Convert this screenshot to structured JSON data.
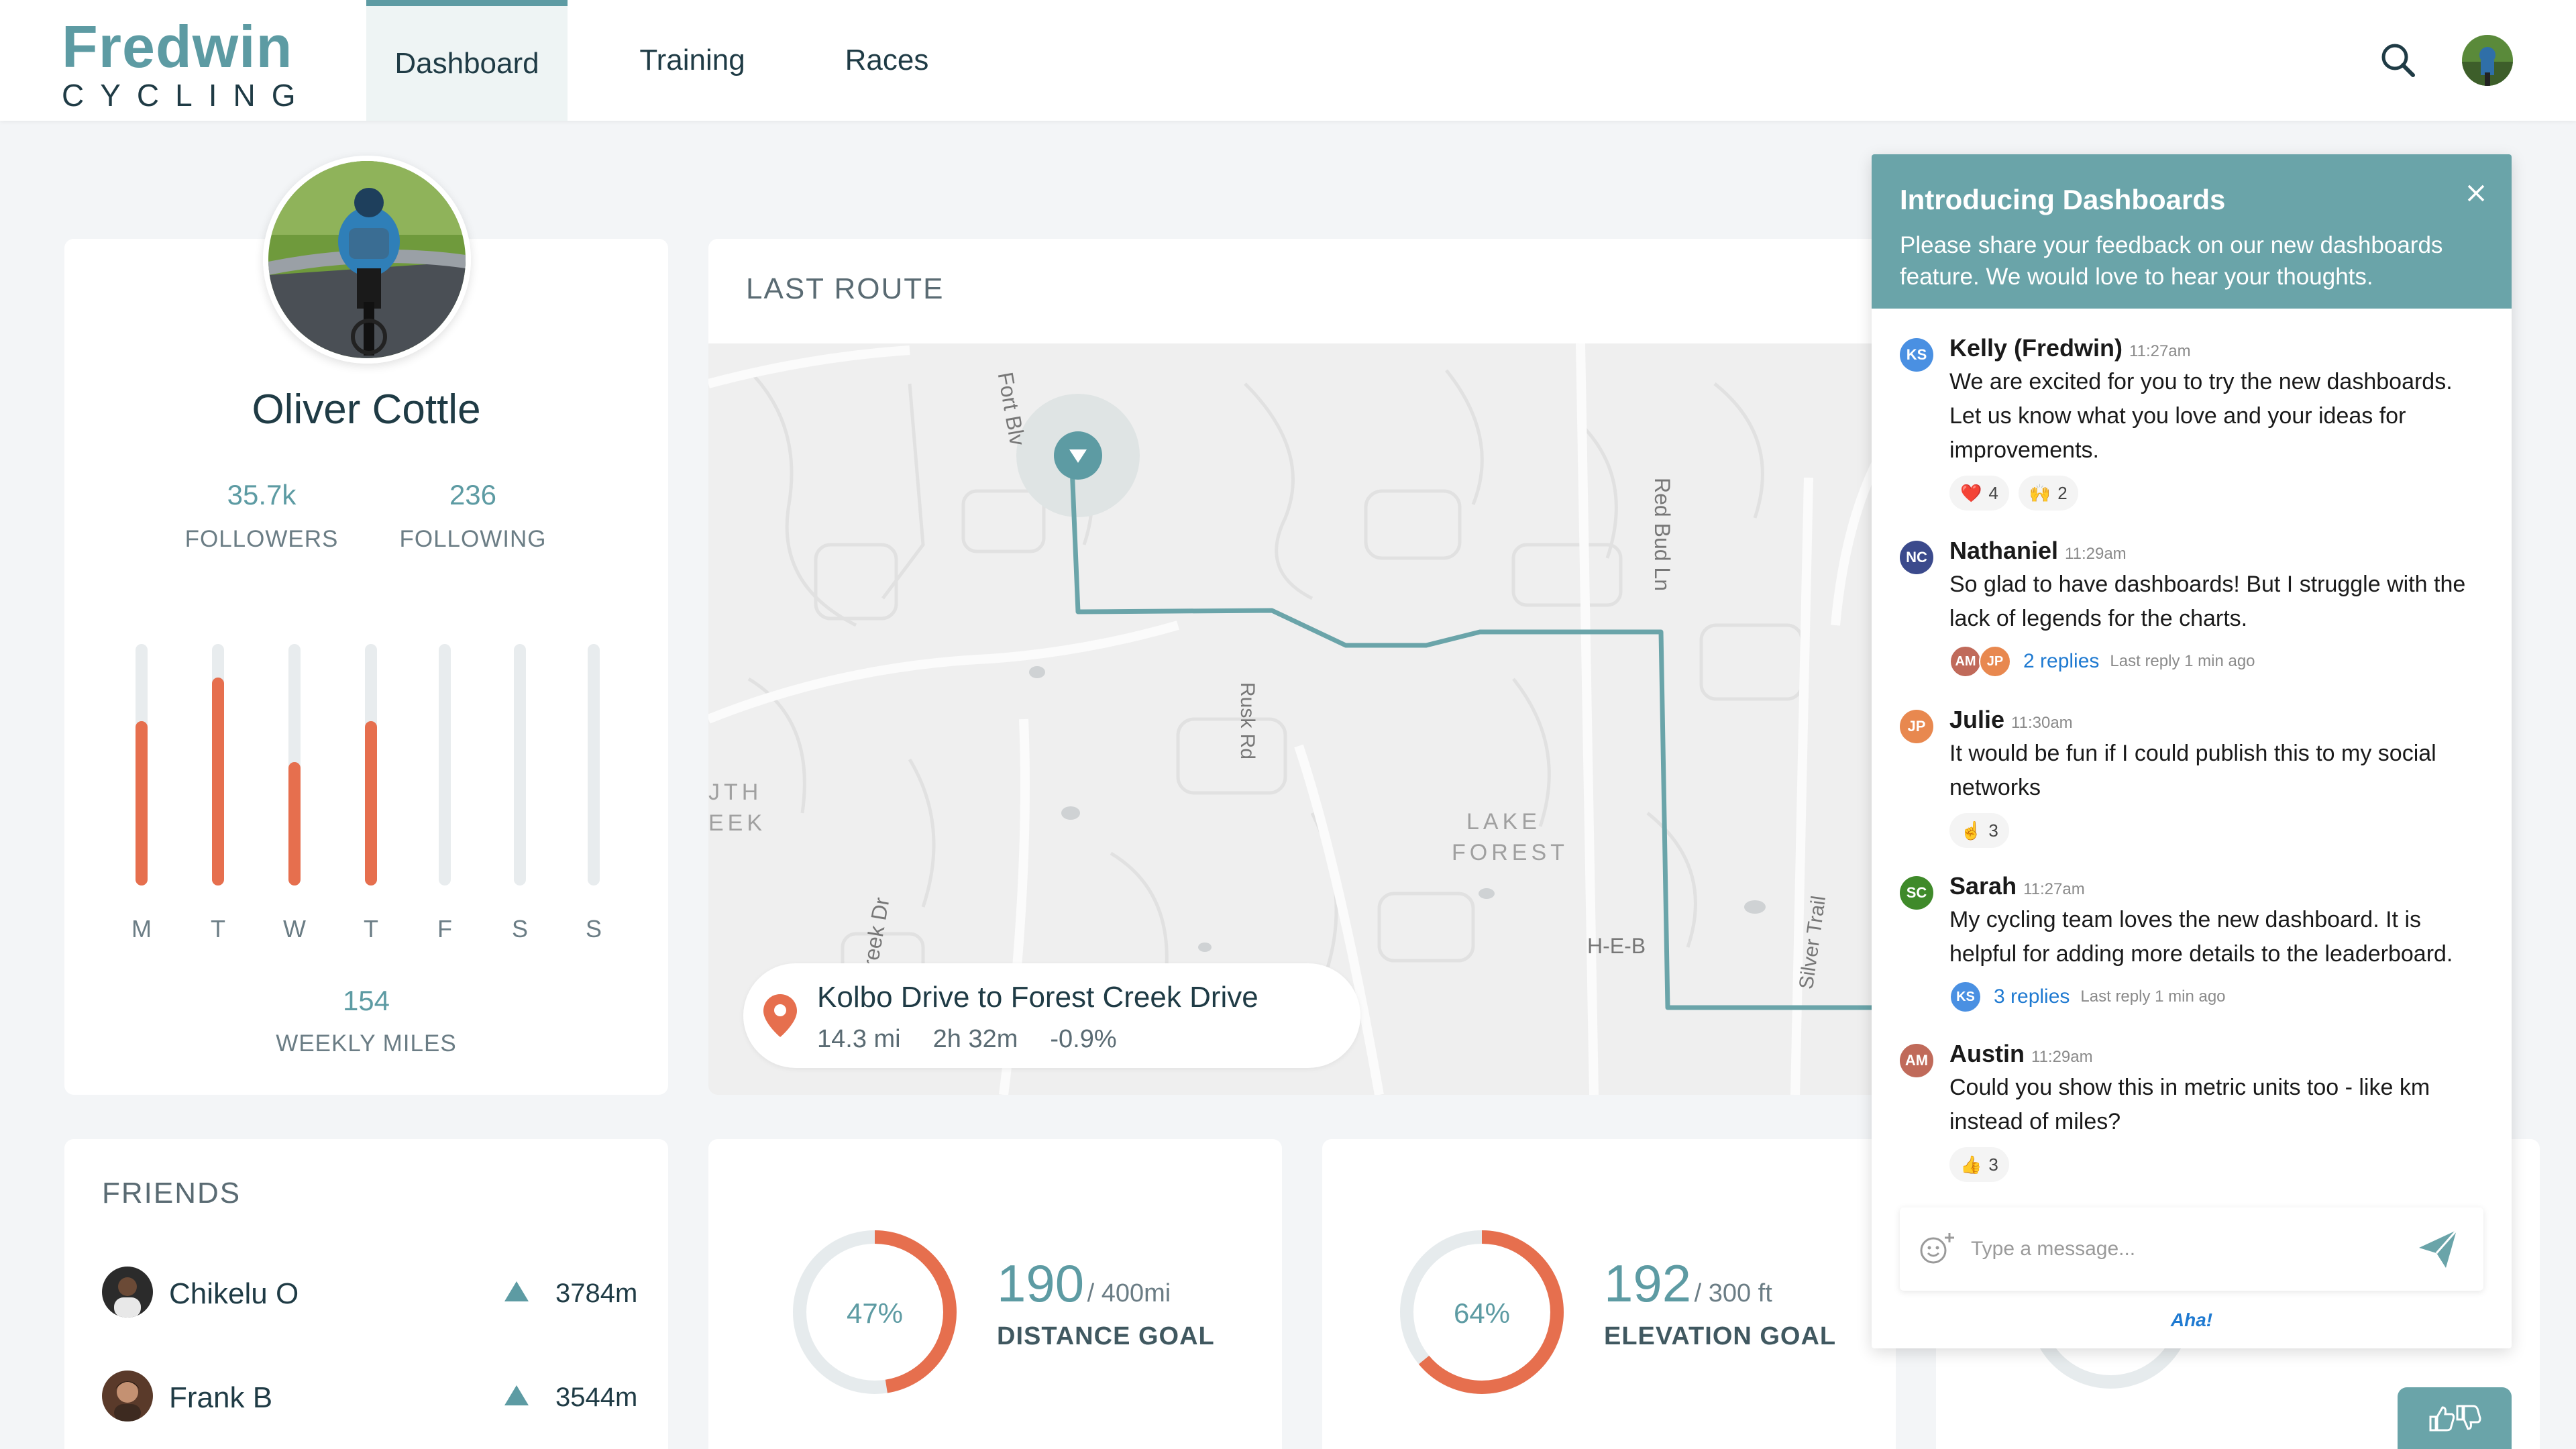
{
  "brand": {
    "name": "Fredwin",
    "sub": "CYCLING"
  },
  "nav": {
    "tabs": [
      {
        "label": "Dashboard"
      },
      {
        "label": "Training"
      },
      {
        "label": "Races"
      }
    ]
  },
  "profile": {
    "name": "Oliver Cottle",
    "followers": {
      "value": "35.7k",
      "label": "FOLLOWERS"
    },
    "following": {
      "value": "236",
      "label": "FOLLOWING"
    },
    "weekly": {
      "days": [
        "M",
        "T",
        "W",
        "T",
        "F",
        "S",
        "S"
      ],
      "levels": [
        0.68,
        0.86,
        0.51,
        0.68,
        0,
        0,
        0
      ]
    },
    "weekly_miles": {
      "value": "154",
      "label": "WEEKLY MILES"
    }
  },
  "route": {
    "title": "LAST ROUTE",
    "name": "Kolbo Drive to Forest Creek Drive",
    "distance": "14.3 mi",
    "duration": "2h 32m",
    "grade": "-0.9%",
    "map_labels": {
      "fort_blvd": "Fort Blv",
      "rusk_rd": "Rusk Rd",
      "red_bud_ln": "Red Bud Ln",
      "lake_forest_1": "LAKE",
      "lake_forest_2": "FOREST",
      "heb": "H-E-B",
      "silver_trail": "Silver Trail",
      "creek_dr": "ble Creek Dr",
      "south_creek_1": "JTH",
      "south_creek_2": "EEK"
    }
  },
  "friends": {
    "title": "FRIENDS",
    "items": [
      {
        "name": "Chikelu O",
        "value": "3784m"
      },
      {
        "name": "Frank B",
        "value": "3544m"
      }
    ]
  },
  "goals": [
    {
      "pct_label": "47%",
      "progress": 0.475,
      "value": "190",
      "target": "/ 400mi",
      "label": "DISTANCE GOAL"
    },
    {
      "pct_label": "64%",
      "progress": 0.64,
      "value": "192",
      "target": "/ 300 ft",
      "label": "ELEVATION GOAL"
    }
  ],
  "chat": {
    "title": "Introducing Dashboards",
    "description": "Please share your feedback on our new dashboards feature. We would love to hear your thoughts.",
    "messages": [
      {
        "initials": "KS",
        "color": "#4a90e2",
        "author": "Kelly (Fredwin)",
        "time": "11:27am",
        "text": "We are excited for you to try the new dashboards. Let us know what you love and your ideas for improvements.",
        "reactions": [
          {
            "emoji": "❤️",
            "count": "4"
          },
          {
            "emoji": "🙌",
            "count": "2"
          }
        ]
      },
      {
        "initials": "NC",
        "color": "#3b4a8c",
        "author": "Nathaniel",
        "time": "11:29am",
        "text": "So glad to have dashboards! But I struggle with the lack of legends for the charts.",
        "reply_avatars": [
          {
            "initials": "AM",
            "color": "#c06a5a"
          },
          {
            "initials": "JP",
            "color": "#e8884f"
          }
        ],
        "replies": "2 replies",
        "last_reply": "Last reply 1 min ago"
      },
      {
        "initials": "JP",
        "color": "#e8884f",
        "author": "Julie",
        "time": "11:30am",
        "text": "It would be fun if I could publish this to my social networks",
        "reactions": [
          {
            "emoji": "☝️",
            "count": "3"
          }
        ]
      },
      {
        "initials": "SC",
        "color": "#3f8a2a",
        "author": "Sarah",
        "time": "11:27am",
        "text": "My cycling team loves the new dashboard. It is helpful for adding more details to the leaderboard.",
        "reply_avatars": [
          {
            "initials": "KS",
            "color": "#4a90e2"
          }
        ],
        "replies": "3 replies",
        "last_reply": "Last reply 1 min ago"
      },
      {
        "initials": "AM",
        "color": "#c06a5a",
        "author": "Austin",
        "time": "11:29am",
        "text": "Could you show this in metric units too - like km instead of miles?",
        "reactions": [
          {
            "emoji": "👍",
            "count": "3"
          }
        ]
      }
    ],
    "input_placeholder": "Type a message...",
    "footer": "Aha!"
  },
  "colors": {
    "accent": "#5d9ba3",
    "orange": "#e66f4e",
    "chat_header": "#6aa4a9"
  }
}
